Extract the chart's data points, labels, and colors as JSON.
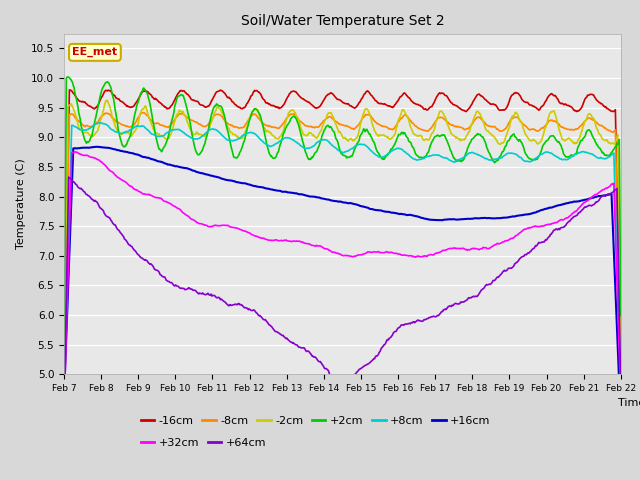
{
  "title": "Soil/Water Temperature Set 2",
  "xlabel": "Time",
  "ylabel": "Temperature (C)",
  "ylim": [
    5.0,
    10.75
  ],
  "background_color": "#d8d8d8",
  "plot_bg_color": "#e8e8e8",
  "annotation_text": "EE_met",
  "annotation_bg": "#ffffcc",
  "annotation_border": "#ccaa00",
  "x_tick_labels": [
    "Feb 7",
    "Feb 8",
    "Feb 9",
    "Feb 10",
    "Feb 11",
    "Feb 12",
    "Feb 13",
    "Feb 14",
    "Feb 15",
    "Feb 16",
    "Feb 17",
    "Feb 18",
    "Feb 19",
    "Feb 20",
    "Feb 21",
    "Feb 22"
  ],
  "series": [
    {
      "label": "-16cm",
      "color": "#cc0000",
      "lw": 1.2
    },
    {
      "label": "-8cm",
      "color": "#ff8800",
      "lw": 1.2
    },
    {
      "label": "-2cm",
      "color": "#cccc00",
      "lw": 1.2
    },
    {
      "label": "+2cm",
      "color": "#00cc00",
      "lw": 1.2
    },
    {
      "label": "+8cm",
      "color": "#00cccc",
      "lw": 1.2
    },
    {
      "label": "+16cm",
      "color": "#0000cc",
      "lw": 1.5
    },
    {
      "label": "+32cm",
      "color": "#ff00ff",
      "lw": 1.2
    },
    {
      "label": "+64cm",
      "color": "#8800cc",
      "lw": 1.2
    }
  ]
}
